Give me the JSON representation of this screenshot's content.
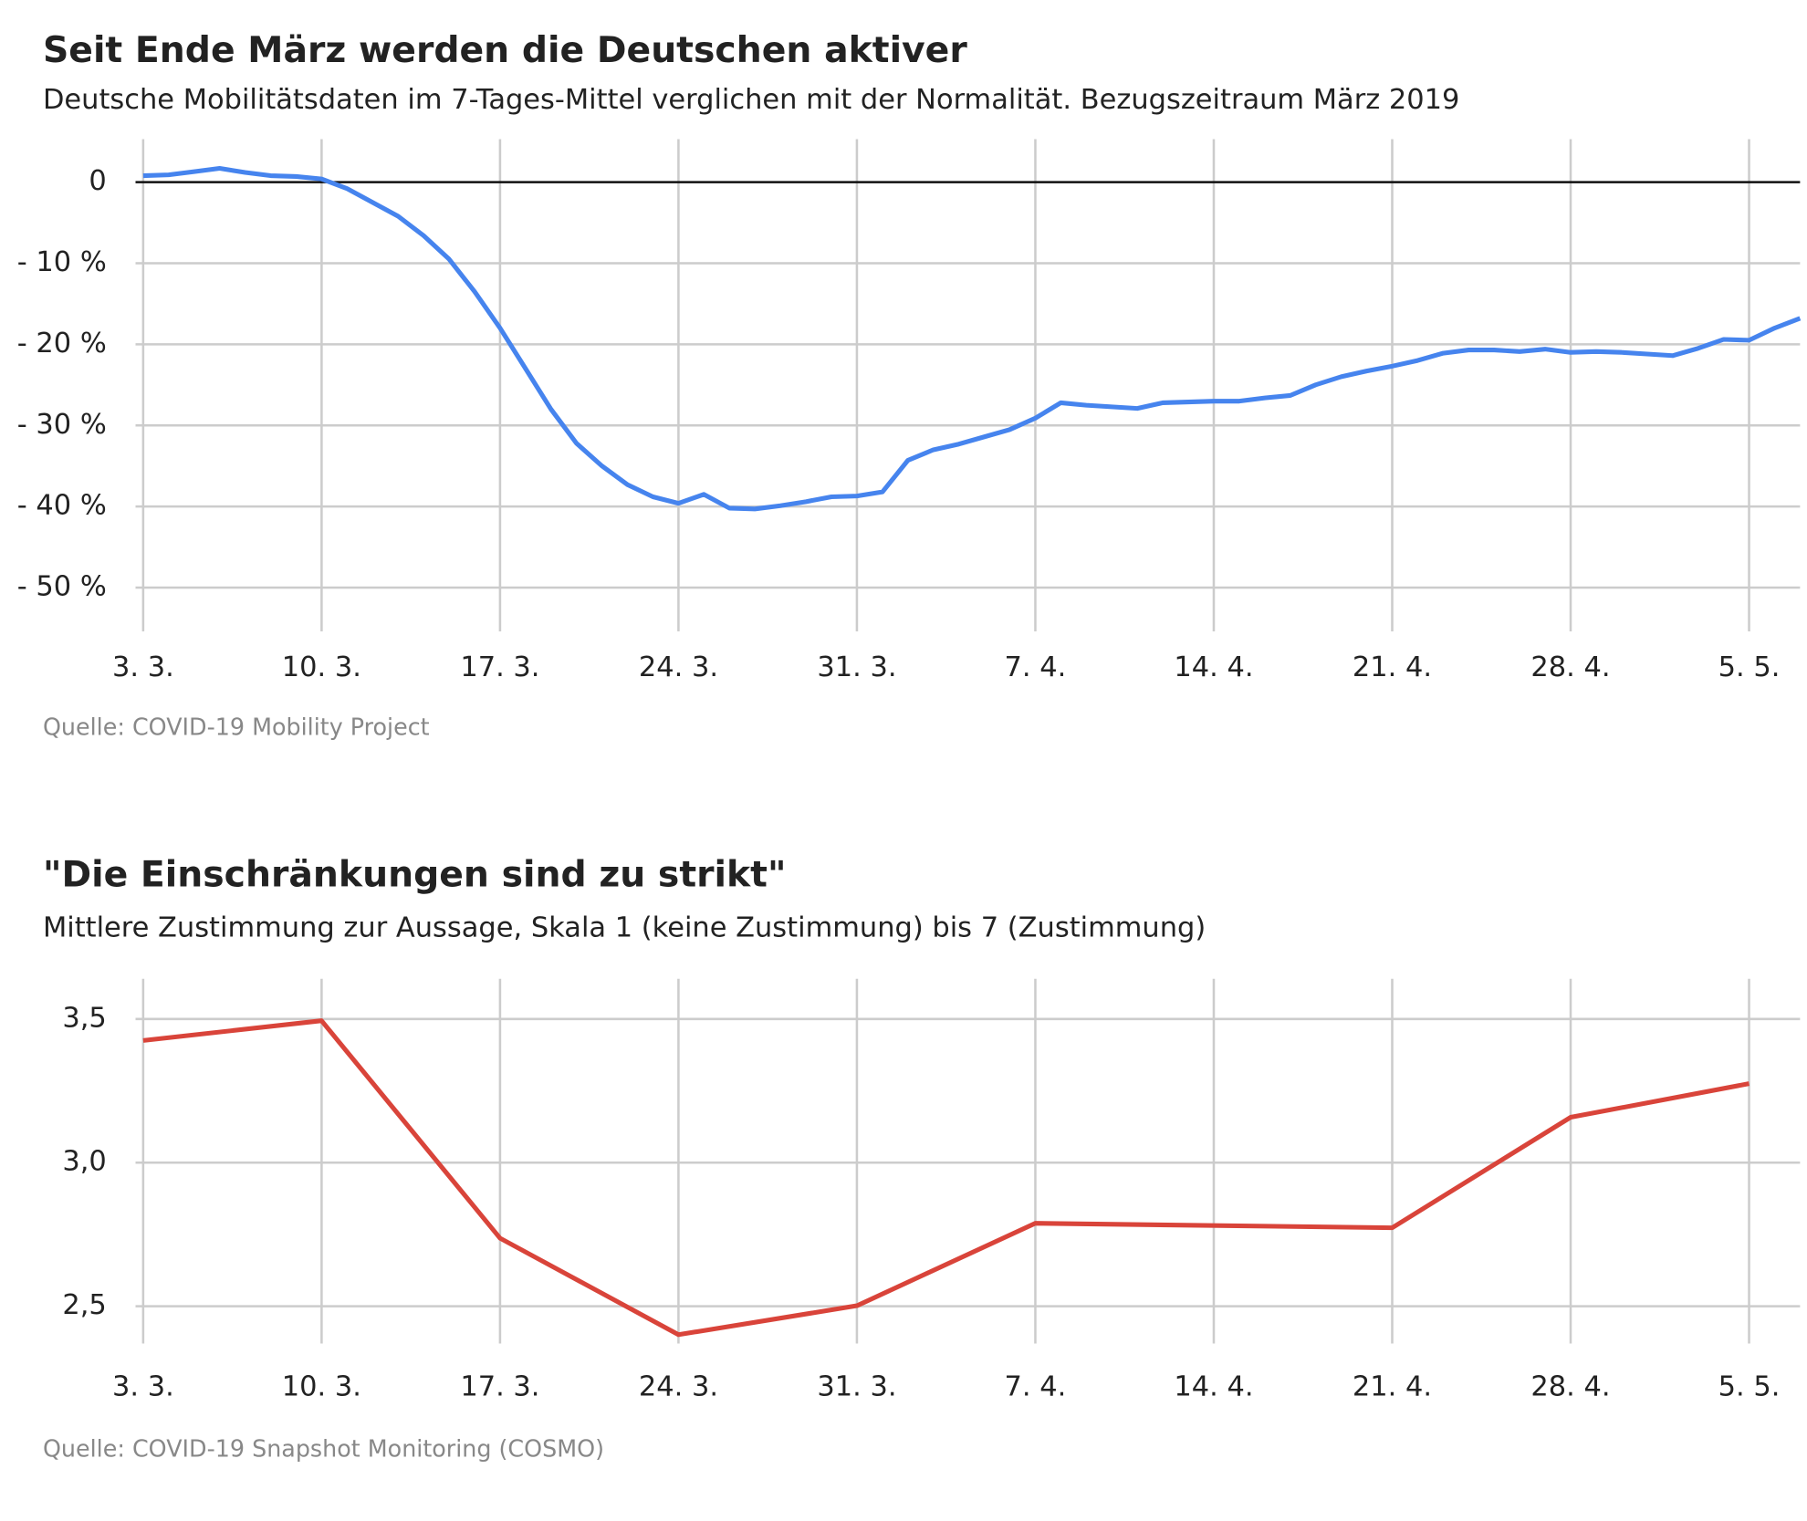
{
  "chart_data": [
    {
      "type": "line",
      "title": "Seit Ende März werden die Deutschen aktiver",
      "subtitle": "Deutsche Mobilitätsdaten im 7-Tages-Mittel verglichen mit der Normalität. Bezugszeitraum März 2019",
      "source": "Quelle: COVID-19 Mobility Project",
      "x": [
        0,
        1,
        2,
        3,
        4,
        5,
        6,
        7,
        8,
        9,
        10,
        11,
        12,
        13,
        14,
        15,
        16,
        17,
        18,
        19,
        20,
        21,
        22,
        23,
        24,
        25,
        26,
        27,
        28,
        29,
        30,
        31,
        32,
        33,
        34,
        35,
        36,
        37,
        38,
        39,
        40,
        41,
        42,
        43,
        44,
        45,
        46,
        47,
        48,
        49,
        50,
        51,
        52,
        53,
        54,
        55,
        56,
        57,
        58,
        59,
        60,
        61,
        62,
        63,
        64,
        65
      ],
      "values": [
        0.8,
        0.9,
        1.3,
        1.7,
        1.2,
        0.8,
        0.7,
        0.4,
        -0.8,
        -2.5,
        -4.2,
        -6.6,
        -9.5,
        -13.5,
        -18,
        -23,
        -28,
        -32.2,
        -35,
        -37.3,
        -38.8,
        -39.6,
        -38.5,
        -40.2,
        -40.3,
        -39.9,
        -39.4,
        -38.8,
        -38.7,
        -38.2,
        -34.3,
        -33,
        -32.3,
        -31.4,
        -30.5,
        -29.1,
        -27.2,
        -27.5,
        -27.7,
        -27.9,
        -27.2,
        -27.1,
        -27,
        -27,
        -26.6,
        -26.3,
        -25,
        -24,
        -23.3,
        -22.7,
        -22,
        -21.1,
        -20.7,
        -20.7,
        -20.9,
        -20.6,
        -21,
        -20.9,
        -21,
        -21.2,
        -21.4,
        -20.5,
        -19.4,
        -19.5,
        -18,
        -16.8
      ],
      "color": "#4684ee",
      "xlim": [
        -0.3,
        65
      ],
      "xticks": [
        {
          "value": 0,
          "label": "3. 3."
        },
        {
          "value": 7,
          "label": "10. 3."
        },
        {
          "value": 14,
          "label": "17. 3."
        },
        {
          "value": 21,
          "label": "24. 3."
        },
        {
          "value": 28,
          "label": "31. 3."
        },
        {
          "value": 35,
          "label": "7. 4."
        },
        {
          "value": 42,
          "label": "14. 4."
        },
        {
          "value": 49,
          "label": "21. 4."
        },
        {
          "value": 56,
          "label": "28. 4."
        },
        {
          "value": 63,
          "label": "5. 5."
        }
      ],
      "ylim": [
        -55.4,
        5.3
      ],
      "yticks": [
        0,
        {
          "value": -10,
          "label": "- 10 %"
        },
        {
          "value": -20,
          "label": "- 20 %"
        },
        {
          "value": -30,
          "label": "- 30 %"
        },
        {
          "value": -40,
          "label": "- 40 %"
        },
        {
          "value": -50,
          "label": "- 50 %"
        }
      ],
      "grid": true
    },
    {
      "type": "line",
      "title": "\"Die Einschränkungen sind zu strikt\"",
      "subtitle": "Mittlere Zustimmung zur Aussage, Skala 1 (keine Zustimmung) bis 7 (Zustimmung)",
      "source": "Quelle: COVID-19 Snapshot Monitoring (COSMO)",
      "x": [
        0,
        7,
        14,
        21,
        28,
        35,
        49,
        56,
        63
      ],
      "values": [
        3.425,
        3.494,
        2.737,
        2.401,
        2.502,
        2.789,
        2.773,
        3.158,
        3.275
      ],
      "color": "#d9443a",
      "xlim": [
        -0.3,
        65
      ],
      "xticks": [
        {
          "value": 0,
          "label": "3. 3."
        },
        {
          "value": 7,
          "label": "10. 3."
        },
        {
          "value": 14,
          "label": "17. 3."
        },
        {
          "value": 21,
          "label": "24. 3."
        },
        {
          "value": 28,
          "label": "31. 3."
        },
        {
          "value": 35,
          "label": "7. 4."
        },
        {
          "value": 42,
          "label": "14. 4."
        },
        {
          "value": 49,
          "label": "21. 4."
        },
        {
          "value": 56,
          "label": "28. 4."
        },
        {
          "value": 63,
          "label": "5. 5."
        }
      ],
      "ylim": [
        2.37,
        3.64
      ],
      "yticks": [
        {
          "value": 2.5,
          "label": "2,5"
        },
        {
          "value": 3.0,
          "label": "3,0"
        },
        {
          "value": 3.5,
          "label": "3,5"
        }
      ],
      "grid": true
    }
  ]
}
